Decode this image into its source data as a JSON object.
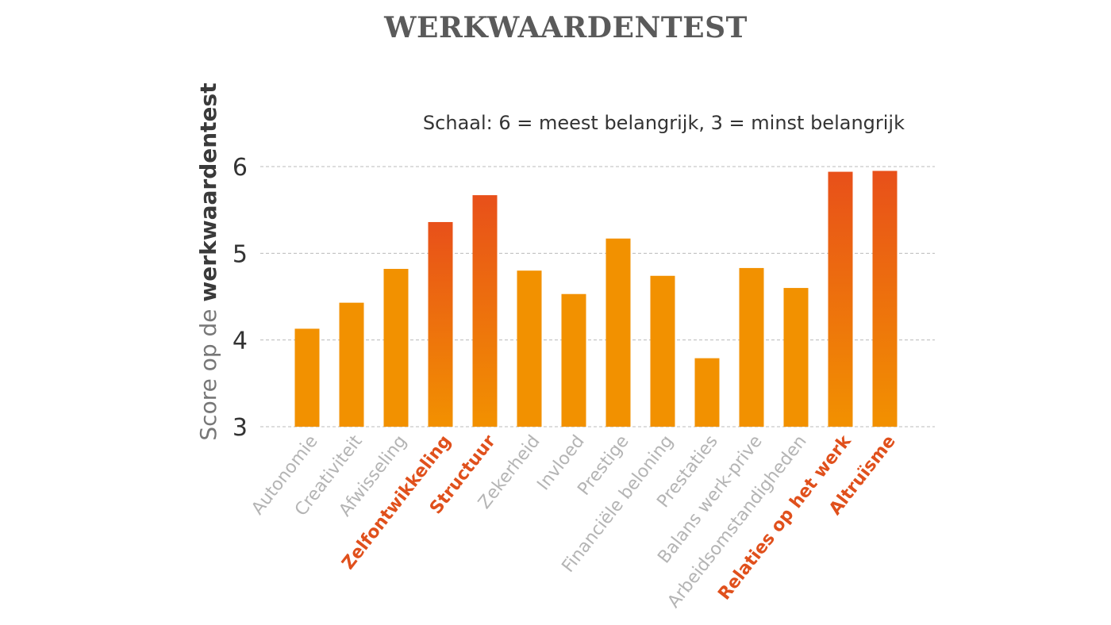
{
  "chart_data": {
    "type": "bar",
    "title": "WERKWAARDENTEST",
    "subtitle": "Schaal: 6 = meest belangrijk, 3 = minst belangrijk",
    "ylabel_prefix": "Score op de ",
    "ylabel_bold": "werkwaardentest",
    "xlabel": "",
    "ylim": [
      3,
      6
    ],
    "yticks": [
      3,
      4,
      5,
      6
    ],
    "grid": true,
    "categories": [
      "Autonomie",
      "Creativiteit",
      "Afwisseling",
      "Zelfontwikkeling",
      "Structuur",
      "Zekerheid",
      "Invloed",
      "Prestige",
      "Financiële beloning",
      "Prestaties",
      "Balans werk-prive",
      "Arbeidsomstandigheden",
      "Relaties op het werk",
      "Altruïsme"
    ],
    "values": [
      4.13,
      4.43,
      4.82,
      5.36,
      5.67,
      4.8,
      4.53,
      5.17,
      4.74,
      3.79,
      4.83,
      4.6,
      5.94,
      5.95
    ],
    "highlighted": [
      false,
      false,
      false,
      true,
      true,
      false,
      false,
      false,
      false,
      false,
      false,
      false,
      true,
      true
    ],
    "colors": {
      "bar": "#f29100",
      "bar_highlight_top": "#e8501a",
      "bar_highlight_bottom": "#f29100",
      "label": "#b4b4b4",
      "label_highlight": "#e0501c",
      "tick": "#333333",
      "grid": "#bbbbbb",
      "ylabel": "#777777",
      "ylabel_bold": "#3a3a3a",
      "subtitle": "#333333"
    }
  }
}
